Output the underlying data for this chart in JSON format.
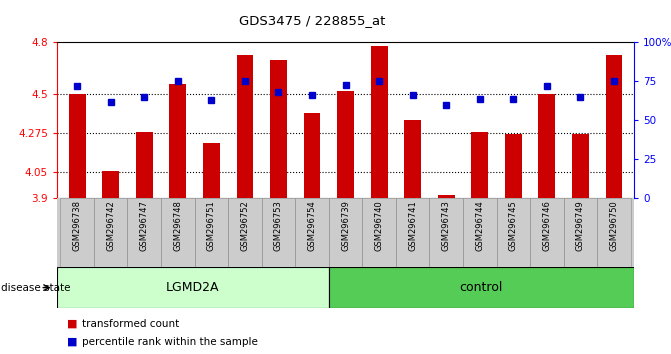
{
  "title": "GDS3475 / 228855_at",
  "samples": [
    "GSM296738",
    "GSM296742",
    "GSM296747",
    "GSM296748",
    "GSM296751",
    "GSM296752",
    "GSM296753",
    "GSM296754",
    "GSM296739",
    "GSM296740",
    "GSM296741",
    "GSM296743",
    "GSM296744",
    "GSM296745",
    "GSM296746",
    "GSM296749",
    "GSM296750"
  ],
  "bar_values": [
    4.5,
    4.06,
    4.28,
    4.56,
    4.22,
    4.73,
    4.7,
    4.39,
    4.52,
    4.78,
    4.35,
    3.92,
    4.28,
    4.27,
    4.5,
    4.27,
    4.73
  ],
  "percentile_values": [
    72,
    62,
    65,
    75,
    63,
    75,
    68,
    66,
    73,
    75,
    66,
    60,
    64,
    64,
    72,
    65,
    75
  ],
  "groups": [
    {
      "label": "LGMD2A",
      "start": 0,
      "end": 8,
      "color": "#ccffcc"
    },
    {
      "label": "control",
      "start": 8,
      "end": 17,
      "color": "#55cc55"
    }
  ],
  "ylim": [
    3.9,
    4.8
  ],
  "y2lim": [
    0,
    100
  ],
  "yticks": [
    3.9,
    4.05,
    4.275,
    4.5,
    4.8
  ],
  "ytick_labels": [
    "3.9",
    "4.05",
    "4.275",
    "4.5",
    "4.8"
  ],
  "y2ticks": [
    0,
    25,
    50,
    75,
    100
  ],
  "y2tick_labels": [
    "0",
    "25",
    "50",
    "75",
    "100%"
  ],
  "bar_color": "#cc0000",
  "percentile_color": "#0000cc",
  "hlines": [
    4.05,
    4.275,
    4.5
  ],
  "disease_state_label": "disease state",
  "legend_items": [
    {
      "color": "#cc0000",
      "label": "transformed count"
    },
    {
      "color": "#0000cc",
      "label": "percentile rank within the sample"
    }
  ]
}
